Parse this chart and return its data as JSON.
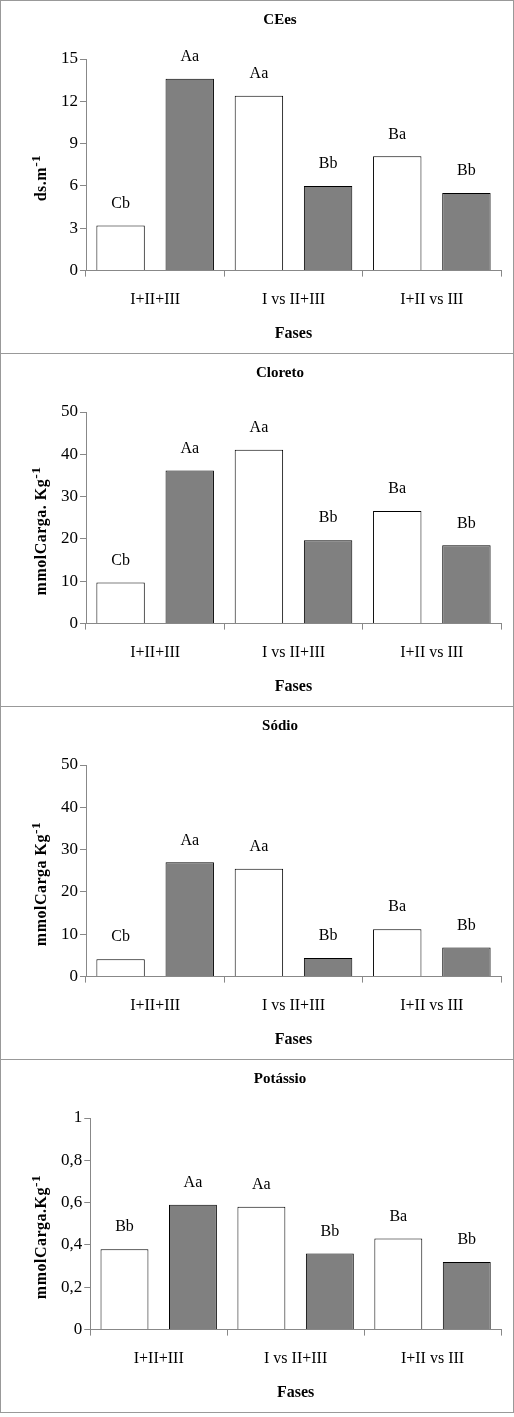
{
  "chart_data": [
    {
      "type": "bar",
      "title": "CEes",
      "xlabel": "Fases",
      "ylabel": "ds.m$^{-1}$",
      "categories": [
        "I+II+III",
        "I vs II+III",
        "I+II vs III"
      ],
      "ylim": [
        0,
        15
      ],
      "yticks": [
        0,
        3,
        6,
        9,
        12,
        15
      ],
      "grid": false,
      "series": [
        {
          "color": "#ffffff",
          "values": [
            3.2,
            12.4,
            8.1
          ],
          "value_labels": [
            "Cb",
            "Aa",
            "Ba"
          ]
        },
        {
          "color": "#808080",
          "values": [
            13.6,
            6.0,
            5.5
          ],
          "value_labels": [
            "Aa",
            "Bb",
            "Bb"
          ]
        }
      ]
    },
    {
      "type": "bar",
      "title": "Cloreto",
      "xlabel": "Fases",
      "ylabel": "mmolCarga. Kg$^{-1}$",
      "categories": [
        "I+II+III",
        "I vs II+III",
        "I+II vs III"
      ],
      "ylim": [
        0,
        50
      ],
      "yticks": [
        0,
        10,
        20,
        30,
        40,
        50
      ],
      "grid": false,
      "series": [
        {
          "color": "#ffffff",
          "values": [
            9.7,
            41.1,
            26.6
          ],
          "value_labels": [
            "Cb",
            "Aa",
            "Ba"
          ]
        },
        {
          "color": "#808080",
          "values": [
            36.2,
            19.7,
            18.5
          ],
          "value_labels": [
            "Aa",
            "Bb",
            "Bb"
          ]
        }
      ]
    },
    {
      "type": "bar",
      "title": "Sódio",
      "xlabel": "Fases",
      "ylabel": "mmolCarga Kg$^{-1}$",
      "categories": [
        "I+II+III",
        "I vs II+III",
        "I+II vs III"
      ],
      "ylim": [
        0,
        50
      ],
      "yticks": [
        0,
        10,
        20,
        30,
        40,
        50
      ],
      "grid": false,
      "series": [
        {
          "color": "#ffffff",
          "values": [
            4.1,
            25.5,
            11.2
          ],
          "value_labels": [
            "Cb",
            "Aa",
            "Ba"
          ]
        },
        {
          "color": "#808080",
          "values": [
            27.0,
            4.4,
            6.9
          ],
          "value_labels": [
            "Aa",
            "Bb",
            "Bb"
          ]
        }
      ]
    },
    {
      "type": "bar",
      "title": "Potássio",
      "xlabel": "Fases",
      "ylabel": "mmolCarga.Kg$^{-1}$",
      "categories": [
        "I+II+III",
        "I vs II+III",
        "I+II vs III"
      ],
      "ylim": [
        0,
        1
      ],
      "yticks": [
        0,
        {
          "value": 0.2,
          "label": "0,2"
        },
        {
          "value": 0.4,
          "label": "0,4"
        },
        {
          "value": 0.6,
          "label": "0,6"
        },
        {
          "value": 0.8,
          "label": "0,8"
        },
        1
      ],
      "grid": false,
      "series": [
        {
          "color": "#ffffff",
          "values": [
            0.38,
            0.58,
            0.43
          ],
          "value_labels": [
            "Bb",
            "Aa",
            "Ba"
          ]
        },
        {
          "color": "#808080",
          "values": [
            0.59,
            0.36,
            0.32
          ],
          "value_labels": [
            "Aa",
            "Bb",
            "Bb"
          ]
        }
      ]
    }
  ]
}
